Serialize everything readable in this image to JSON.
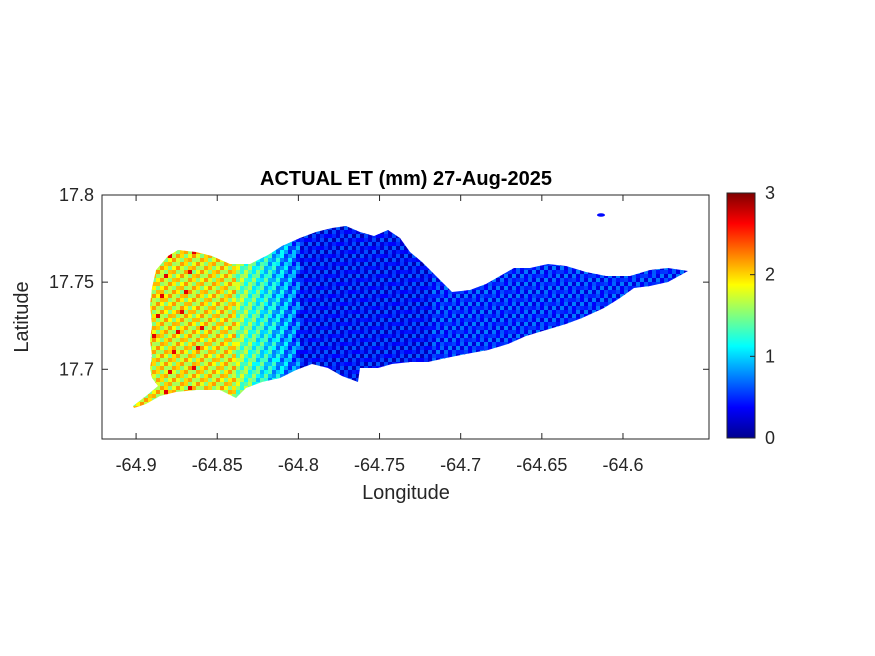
{
  "chart_data": {
    "type": "heatmap",
    "title": "ACTUAL ET (mm) 27-Aug-2025",
    "xlabel": "Longitude",
    "ylabel": "Latitude",
    "xlim": [
      -64.921,
      -64.547
    ],
    "ylim": [
      17.66,
      17.8
    ],
    "xticks": [
      -64.9,
      -64.85,
      -64.8,
      -64.75,
      -64.7,
      -64.65,
      -64.6
    ],
    "xtick_labels": [
      "-64.9",
      "-64.85",
      "-64.8",
      "-64.75",
      "-64.7",
      "-64.65",
      "-64.6"
    ],
    "yticks": [
      17.7,
      17.75,
      17.8
    ],
    "ytick_labels": [
      "17.7",
      "17.75",
      "17.8"
    ],
    "colorbar": {
      "colormap": "jet",
      "min": 0,
      "max": 3,
      "ticks": [
        0,
        1,
        2,
        3
      ],
      "tick_labels": [
        "0",
        "1",
        "2",
        "3"
      ]
    },
    "value_regions": [
      {
        "description": "western end",
        "lon_range": [
          -64.89,
          -64.84
        ],
        "lat_range": [
          17.69,
          17.765
        ],
        "approx_value": 2.0
      },
      {
        "description": "west-central",
        "lon_range": [
          -64.84,
          -64.8
        ],
        "lat_range": [
          17.69,
          17.77
        ],
        "approx_value": 1.1
      },
      {
        "description": "central",
        "lon_range": [
          -64.8,
          -64.72
        ],
        "lat_range": [
          17.7,
          17.78
        ],
        "approx_value": 0.4
      },
      {
        "description": "eastern end",
        "lon_range": [
          -64.72,
          -64.56
        ],
        "lat_range": [
          17.72,
          17.76
        ],
        "approx_value": 0.5
      }
    ]
  }
}
